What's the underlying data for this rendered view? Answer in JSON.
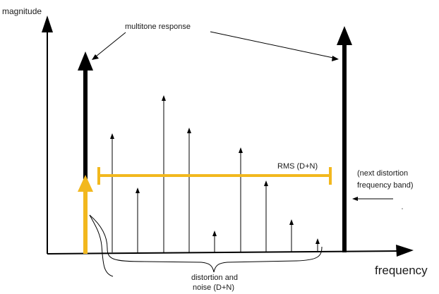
{
  "labels": {
    "y_axis": "magnitude",
    "x_axis": "frequency",
    "multitone": "multitone response",
    "rms": "RMS (D+N)",
    "next_band_line1": "(next distortion",
    "next_band_line2": "frequency band)",
    "dn_line1": "distortion and",
    "dn_line2": "noise (D+N)"
  },
  "colors": {
    "axis": "#000000",
    "multitone": "#000000",
    "rms": "#F2B81E",
    "distortion": "#000000"
  },
  "spectrum": {
    "multitone_tones": 2,
    "distortion_components": 9,
    "rms_level_shown": true
  }
}
